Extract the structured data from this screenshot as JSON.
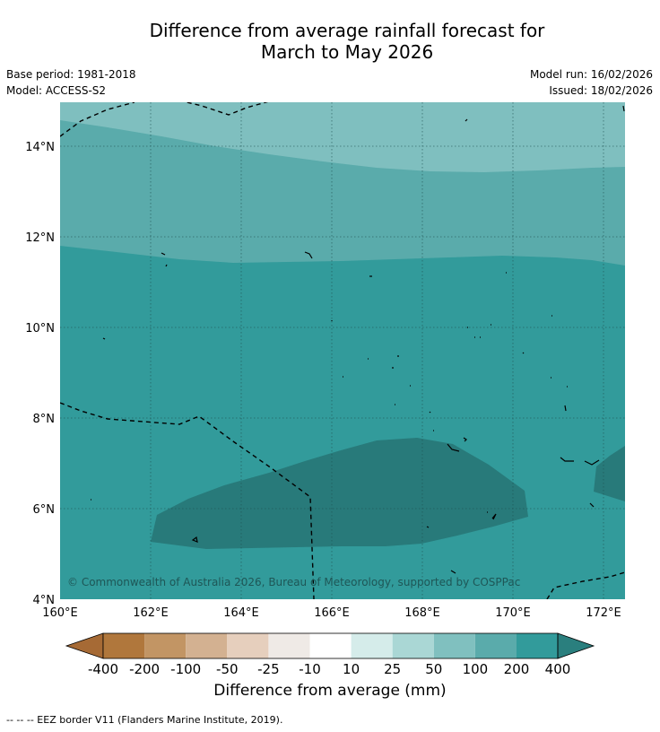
{
  "title": {
    "line1": "Difference from average rainfall forecast for",
    "line2": "March to May 2026"
  },
  "meta": {
    "base_period": "Base period: 1981-2018",
    "model": "Model: ACCESS-S2",
    "model_run": "Model run: 16/02/2026",
    "issued": "Issued: 18/02/2026"
  },
  "map": {
    "copyright": "© Commonwealth of Australia 2026, Bureau of Meteorology, supported by COSPPac",
    "lon_labels": [
      "160°E",
      "162°E",
      "164°E",
      "166°E",
      "168°E",
      "170°E",
      "172°E"
    ],
    "lat_labels": [
      "14°N",
      "12°N",
      "10°N",
      "8°N",
      "6°N",
      "4°N"
    ],
    "colors": {
      "class_50_100": "#7fbfbf",
      "class_100_200": "#5aabab",
      "class_200_400": "#329b9b",
      "class_gt_400": "#287a7a"
    }
  },
  "colorbar": {
    "label": "Difference from average (mm)",
    "ticks": [
      "-400",
      "-200",
      "-100",
      "-50",
      "-25",
      "-10",
      "10",
      "25",
      "50",
      "100",
      "200",
      "400"
    ],
    "colors": [
      "#a66a35",
      "#b0773c",
      "#c29564",
      "#d3b191",
      "#e6cfbd",
      "#efeae6",
      "#ffffff",
      "#d5ecea",
      "#aad7d5",
      "#80c0bf",
      "#5aabab",
      "#329b9b",
      "#2a7f7e"
    ]
  },
  "footer": "--  --  -- EEZ border V11 (Flanders Marine Institute, 2019)."
}
